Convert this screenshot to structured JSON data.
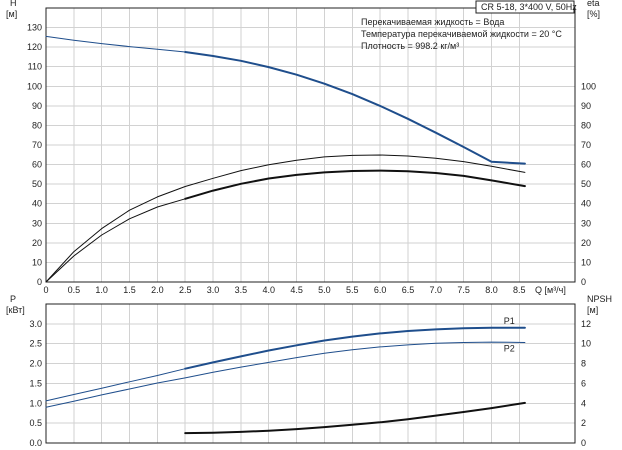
{
  "header": {
    "model": "CR 5-18, 3*400 V, 50Hz",
    "info_lines": [
      "Перекачиваемая жидкость = Вода",
      "Температура перекачиваемой жидкости = 20 °C",
      "Плотность = 998.2 кг/м³"
    ]
  },
  "colors": {
    "blue": "#1f4e8c",
    "black": "#111111",
    "grid": "#d2d2d2",
    "label_blue": "#1f6aa5"
  },
  "chart_data": [
    {
      "type": "line",
      "panel": "top",
      "ylabel_left": [
        "H",
        "[м]"
      ],
      "ylabel_right": [
        "eta",
        "[%]"
      ],
      "xlabel": "Q [м³/ч]",
      "xlim": [
        0,
        9.5
      ],
      "ylim": [
        0,
        140
      ],
      "xticks": [
        "0",
        "0.5",
        "1.0",
        "1.5",
        "2.0",
        "2.5",
        "3.0",
        "3.5",
        "4.0",
        "4.5",
        "5.0",
        "5.5",
        "6.0",
        "6.5",
        "7.0",
        "7.5",
        "8.0",
        "8.5"
      ],
      "yticks_left": [
        "0",
        "10",
        "20",
        "30",
        "40",
        "50",
        "60",
        "70",
        "80",
        "90",
        "100",
        "110",
        "120",
        "130"
      ],
      "yticks_right": [
        "0",
        "10",
        "20",
        "30",
        "40",
        "50",
        "60",
        "70",
        "80",
        "90",
        "100"
      ],
      "grid": true,
      "series": [
        {
          "role": "H",
          "color": "blue",
          "width": 1,
          "x": [
            0,
            0.5,
            1.0,
            1.5,
            2.0,
            2.5
          ],
          "y": [
            125.5,
            123.5,
            121.8,
            120.3,
            118.9,
            117.5
          ]
        },
        {
          "role": "H",
          "color": "blue",
          "width": 2,
          "x": [
            2.5,
            3.0,
            3.5,
            4.0,
            4.5,
            5.0,
            5.5,
            6.0,
            6.5,
            7.0,
            7.5,
            8.0,
            8.6
          ],
          "y": [
            117.5,
            115.5,
            113.0,
            109.8,
            105.9,
            101.3,
            96.0,
            90.0,
            83.4,
            76.3,
            69.0,
            61.4,
            60.5
          ]
        },
        {
          "role": "eta",
          "color": "black",
          "width": 1,
          "x": [
            0,
            0.5,
            1.0,
            1.5,
            2.0,
            2.5,
            3.0,
            3.5,
            4.0,
            4.5,
            5.0,
            5.5,
            6.0,
            6.5,
            7.0,
            7.5,
            8.0,
            8.6
          ],
          "y": [
            0,
            15.5,
            27.3,
            36.7,
            43.5,
            48.8,
            53.0,
            56.9,
            59.9,
            62.2,
            63.9,
            64.7,
            64.9,
            64.4,
            63.2,
            61.5,
            59.1,
            56.0
          ]
        },
        {
          "role": "eta",
          "color": "black",
          "width": 1,
          "x": [
            0,
            0.5,
            1.0,
            1.5,
            2.0,
            2.5
          ],
          "y": [
            0,
            13.3,
            24.0,
            32.3,
            38.3,
            42.5
          ]
        },
        {
          "role": "eta",
          "color": "black",
          "width": 2,
          "x": [
            2.5,
            3.0,
            3.5,
            4.0,
            4.5,
            5.0,
            5.5,
            6.0,
            6.5,
            7.0,
            7.5,
            8.0,
            8.6
          ],
          "y": [
            42.5,
            46.7,
            50.2,
            52.9,
            54.7,
            56.0,
            56.7,
            56.9,
            56.6,
            55.7,
            54.2,
            51.9,
            49.0
          ]
        }
      ]
    },
    {
      "type": "line",
      "panel": "bottom",
      "ylabel_left": [
        "P",
        "[кВт]"
      ],
      "ylabel_right": [
        "NPSH",
        "[м]"
      ],
      "xlim": [
        0,
        9.5
      ],
      "ylim": [
        0,
        3.5
      ],
      "yticks_left": [
        "0.0",
        "0.5",
        "1.0",
        "1.5",
        "2.0",
        "2.5",
        "3.0"
      ],
      "yticks_right": [
        "0",
        "2",
        "4",
        "6",
        "8",
        "10",
        "12"
      ],
      "grid": true,
      "series": [
        {
          "name": "P1",
          "color": "blue",
          "width": 1,
          "x": [
            0,
            0.5,
            1.0,
            1.5,
            2.0,
            2.5
          ],
          "y": [
            1.06,
            1.22,
            1.38,
            1.54,
            1.7,
            1.87
          ]
        },
        {
          "name": "P1",
          "color": "blue",
          "width": 2,
          "x": [
            2.5,
            3.0,
            3.5,
            4.0,
            4.5,
            5.0,
            5.5,
            6.0,
            6.5,
            7.0,
            7.5,
            8.0,
            8.6
          ],
          "y": [
            1.87,
            2.03,
            2.18,
            2.33,
            2.46,
            2.58,
            2.68,
            2.76,
            2.82,
            2.86,
            2.89,
            2.9,
            2.9
          ]
        },
        {
          "name": "P2",
          "color": "blue",
          "width": 1,
          "x": [
            0,
            0.5,
            1.0,
            1.5,
            2.0,
            2.5,
            3.0,
            3.5,
            4.0,
            4.5,
            5.0,
            5.5,
            6.0,
            6.5,
            7.0,
            7.5,
            8.0,
            8.6
          ],
          "y": [
            0.9,
            1.05,
            1.21,
            1.36,
            1.51,
            1.64,
            1.78,
            1.91,
            2.03,
            2.15,
            2.26,
            2.35,
            2.42,
            2.47,
            2.51,
            2.53,
            2.54,
            2.53
          ]
        },
        {
          "role": "NPSH",
          "color": "black",
          "width": 2,
          "x": [
            2.5,
            3.0,
            3.5,
            4.0,
            4.5,
            5.0,
            5.5,
            6.0,
            6.5,
            7.0,
            7.5,
            8.0,
            8.6
          ],
          "y": [
            0.25,
            0.26,
            0.28,
            0.31,
            0.35,
            0.4,
            0.46,
            0.52,
            0.6,
            0.69,
            0.78,
            0.88,
            1.01
          ]
        }
      ]
    }
  ]
}
